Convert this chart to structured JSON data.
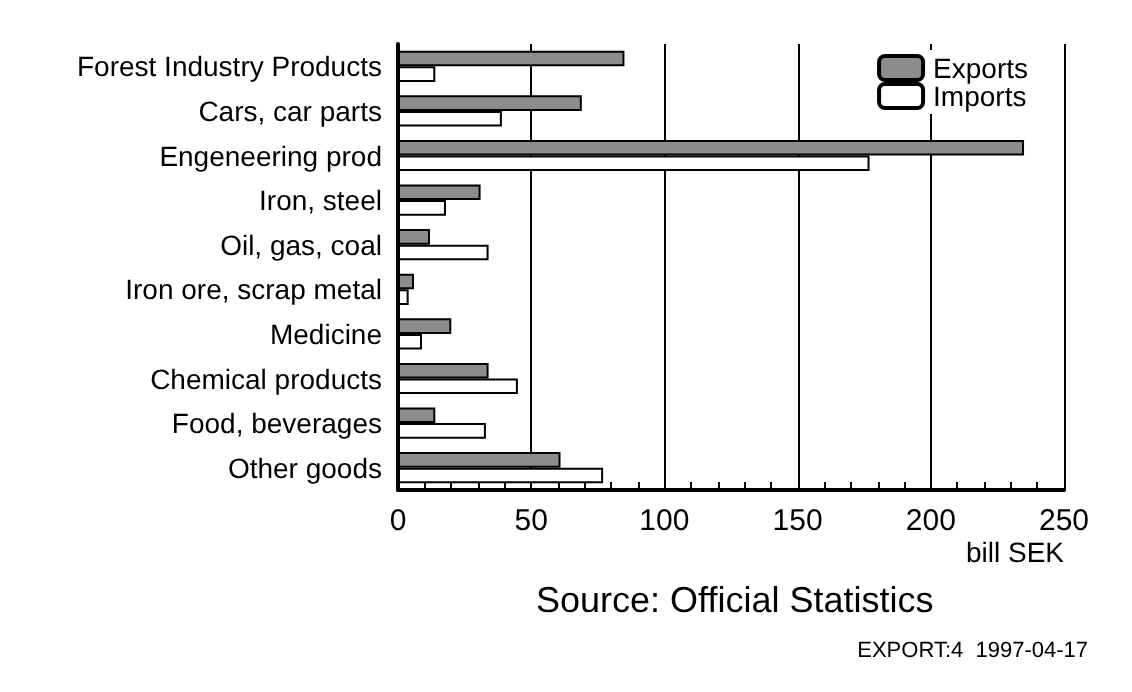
{
  "chart_data": {
    "type": "bar",
    "orientation": "horizontal",
    "xlabel": "bill SEK",
    "categories": [
      "Forest Industry Products",
      "Cars, car parts",
      "Engeneering prod",
      "Iron, steel",
      "Oil, gas, coal",
      "Iron ore, scrap metal",
      "Medicine",
      "Chemical products",
      "Food, beverages",
      "Other goods"
    ],
    "series": [
      {
        "name": "Exports",
        "color": "#8c8c8c",
        "values": [
          85,
          69,
          235,
          31,
          12,
          6,
          20,
          34,
          14,
          61
        ]
      },
      {
        "name": "Imports",
        "color": "#ffffff",
        "values": [
          14,
          39,
          177,
          18,
          34,
          4,
          9,
          45,
          33,
          77
        ]
      }
    ],
    "xlim": [
      0,
      250
    ],
    "xticks": [
      0,
      50,
      100,
      150,
      200,
      250
    ],
    "grid": "x",
    "legend": "top right",
    "annotations": [
      "Source: Official Statistics",
      "EXPORT:4  1997-04-17"
    ]
  }
}
